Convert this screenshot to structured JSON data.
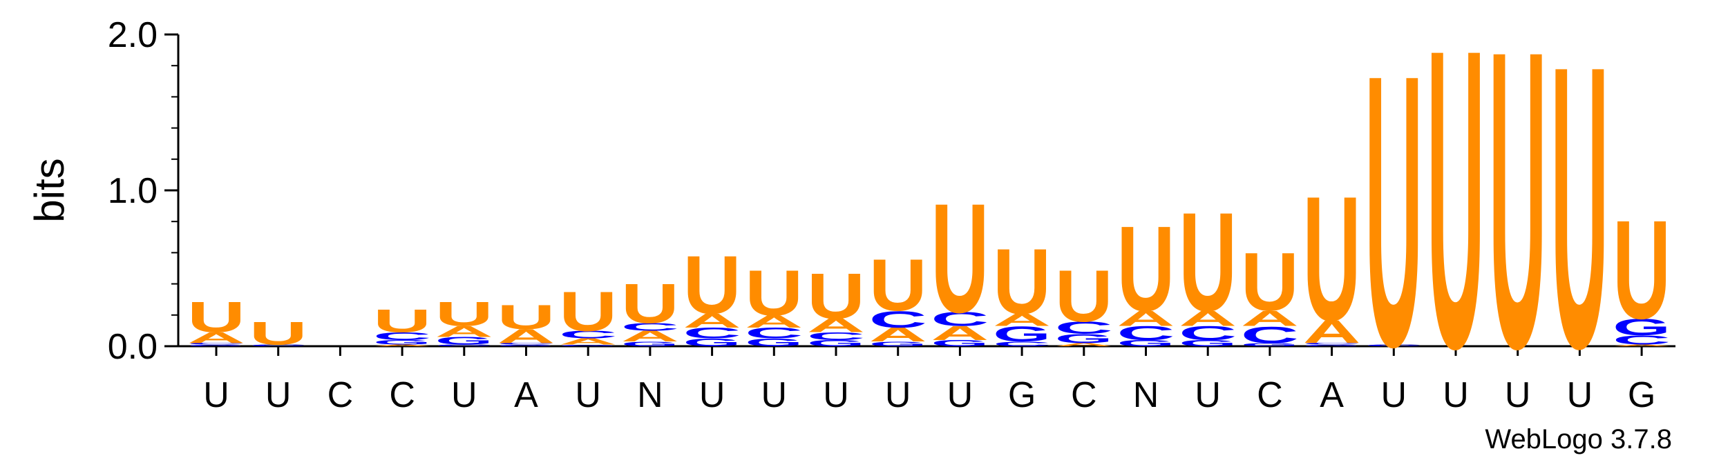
{
  "chart_data": {
    "type": "sequence-logo",
    "ylabel": "bits",
    "ylim": [
      0,
      2.0
    ],
    "yticks": [
      "0.0",
      "1.0",
      "2.0"
    ],
    "credit": "WebLogo 3.7.8",
    "colors": {
      "U": "#FF8C00",
      "A": "#FF8C00",
      "C": "#0000FF",
      "G": "#0000FF"
    },
    "positions": [
      {
        "label": "U",
        "stack": [
          {
            "letter": "G",
            "bits": 0.01
          },
          {
            "letter": "C",
            "bits": 0.01
          },
          {
            "letter": "A",
            "bits": 0.07
          },
          {
            "letter": "U",
            "bits": 0.2
          }
        ]
      },
      {
        "label": "U",
        "stack": [
          {
            "letter": "C",
            "bits": 0.01
          },
          {
            "letter": "U",
            "bits": 0.15
          }
        ]
      },
      {
        "label": "C",
        "stack": []
      },
      {
        "label": "C",
        "stack": [
          {
            "letter": "A",
            "bits": 0.01
          },
          {
            "letter": "G",
            "bits": 0.03
          },
          {
            "letter": "C",
            "bits": 0.05
          },
          {
            "letter": "U",
            "bits": 0.15
          }
        ]
      },
      {
        "label": "U",
        "stack": [
          {
            "letter": "C",
            "bits": 0.01
          },
          {
            "letter": "G",
            "bits": 0.05
          },
          {
            "letter": "A",
            "bits": 0.07
          },
          {
            "letter": "U",
            "bits": 0.16
          }
        ]
      },
      {
        "label": "A",
        "stack": [
          {
            "letter": "G",
            "bits": 0.01
          },
          {
            "letter": "C",
            "bits": 0.01
          },
          {
            "letter": "A",
            "bits": 0.09
          },
          {
            "letter": "U",
            "bits": 0.16
          }
        ]
      },
      {
        "label": "U",
        "stack": [
          {
            "letter": "G",
            "bits": 0.01
          },
          {
            "letter": "A",
            "bits": 0.04
          },
          {
            "letter": "C",
            "bits": 0.05
          },
          {
            "letter": "U",
            "bits": 0.26
          }
        ]
      },
      {
        "label": "N",
        "stack": [
          {
            "letter": "G",
            "bits": 0.03
          },
          {
            "letter": "A",
            "bits": 0.07
          },
          {
            "letter": "C",
            "bits": 0.05
          },
          {
            "letter": "U",
            "bits": 0.26
          }
        ]
      },
      {
        "label": "U",
        "stack": [
          {
            "letter": "G",
            "bits": 0.05
          },
          {
            "letter": "C",
            "bits": 0.07
          },
          {
            "letter": "A",
            "bits": 0.09
          },
          {
            "letter": "U",
            "bits": 0.38
          }
        ]
      },
      {
        "label": "U",
        "stack": [
          {
            "letter": "G",
            "bits": 0.05
          },
          {
            "letter": "C",
            "bits": 0.07
          },
          {
            "letter": "A",
            "bits": 0.08
          },
          {
            "letter": "U",
            "bits": 0.3
          }
        ]
      },
      {
        "label": "U",
        "stack": [
          {
            "letter": "G",
            "bits": 0.04
          },
          {
            "letter": "C",
            "bits": 0.05
          },
          {
            "letter": "A",
            "bits": 0.09
          },
          {
            "letter": "U",
            "bits": 0.3
          }
        ]
      },
      {
        "label": "U",
        "stack": [
          {
            "letter": "G",
            "bits": 0.03
          },
          {
            "letter": "A",
            "bits": 0.09
          },
          {
            "letter": "C",
            "bits": 0.11
          },
          {
            "letter": "U",
            "bits": 0.34
          }
        ]
      },
      {
        "label": "U",
        "stack": [
          {
            "letter": "G",
            "bits": 0.04
          },
          {
            "letter": "A",
            "bits": 0.09
          },
          {
            "letter": "C",
            "bits": 0.09
          },
          {
            "letter": "U",
            "bits": 0.72
          }
        ]
      },
      {
        "label": "G",
        "stack": [
          {
            "letter": "C",
            "bits": 0.03
          },
          {
            "letter": "G",
            "bits": 0.1
          },
          {
            "letter": "A",
            "bits": 0.08
          },
          {
            "letter": "U",
            "bits": 0.43
          }
        ]
      },
      {
        "label": "C",
        "stack": [
          {
            "letter": "A",
            "bits": 0.02
          },
          {
            "letter": "G",
            "bits": 0.06
          },
          {
            "letter": "C",
            "bits": 0.08
          },
          {
            "letter": "U",
            "bits": 0.34
          }
        ]
      },
      {
        "label": "N",
        "stack": [
          {
            "letter": "G",
            "bits": 0.04
          },
          {
            "letter": "C",
            "bits": 0.09
          },
          {
            "letter": "A",
            "bits": 0.1
          },
          {
            "letter": "U",
            "bits": 0.56
          }
        ]
      },
      {
        "label": "U",
        "stack": [
          {
            "letter": "G",
            "bits": 0.04
          },
          {
            "letter": "C",
            "bits": 0.09
          },
          {
            "letter": "A",
            "bits": 0.1
          },
          {
            "letter": "U",
            "bits": 0.65
          }
        ]
      },
      {
        "label": "C",
        "stack": [
          {
            "letter": "G",
            "bits": 0.02
          },
          {
            "letter": "C",
            "bits": 0.11
          },
          {
            "letter": "A",
            "bits": 0.1
          },
          {
            "letter": "U",
            "bits": 0.38
          }
        ]
      },
      {
        "label": "A",
        "stack": [
          {
            "letter": "G",
            "bits": 0.01
          },
          {
            "letter": "C",
            "bits": 0.01
          },
          {
            "letter": "A",
            "bits": 0.15
          },
          {
            "letter": "U",
            "bits": 0.82
          }
        ]
      },
      {
        "label": "U",
        "stack": [
          {
            "letter": "C",
            "bits": 0.01
          },
          {
            "letter": "U",
            "bits": 1.79
          }
        ]
      },
      {
        "label": "U",
        "stack": [
          {
            "letter": "U",
            "bits": 1.97
          }
        ]
      },
      {
        "label": "U",
        "stack": [
          {
            "letter": "U",
            "bits": 1.96
          }
        ]
      },
      {
        "label": "U",
        "stack": [
          {
            "letter": "U",
            "bits": 1.86
          }
        ]
      },
      {
        "label": "G",
        "stack": [
          {
            "letter": "A",
            "bits": 0.01
          },
          {
            "letter": "C",
            "bits": 0.06
          },
          {
            "letter": "G",
            "bits": 0.11
          },
          {
            "letter": "U",
            "bits": 0.65
          }
        ]
      }
    ]
  }
}
